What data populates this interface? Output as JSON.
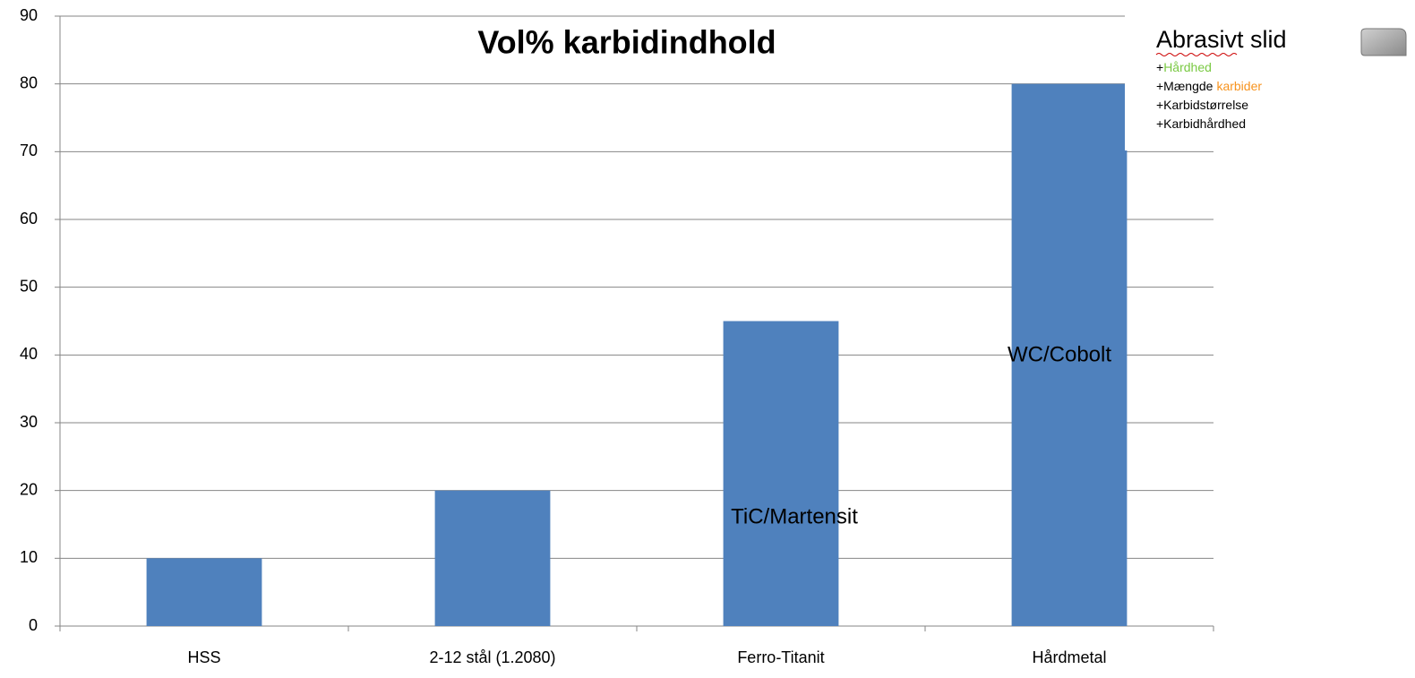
{
  "chart_data": {
    "type": "bar",
    "title": "Vol% karbidindhold",
    "categories": [
      "HSS",
      "2-12 stål (1.2080)",
      "Ferro-Titanit",
      "Hårdmetal"
    ],
    "values": [
      10,
      20,
      45,
      80
    ],
    "color": "#4f81bd",
    "ylim": [
      0,
      90
    ],
    "yticks": [
      0,
      10,
      20,
      30,
      40,
      50,
      60,
      70,
      80,
      90
    ],
    "grid": true,
    "annotations": [
      "TiC/Martensit",
      "WC/Cobolt"
    ]
  },
  "inset": {
    "title": "Abrasivt slid",
    "lines": [
      [
        "+",
        "Hårdhed"
      ],
      [
        "+Mængde",
        "karbider"
      ],
      [
        "+Karbidstørrelse"
      ],
      [
        "+Karbidhårdhed"
      ]
    ]
  }
}
